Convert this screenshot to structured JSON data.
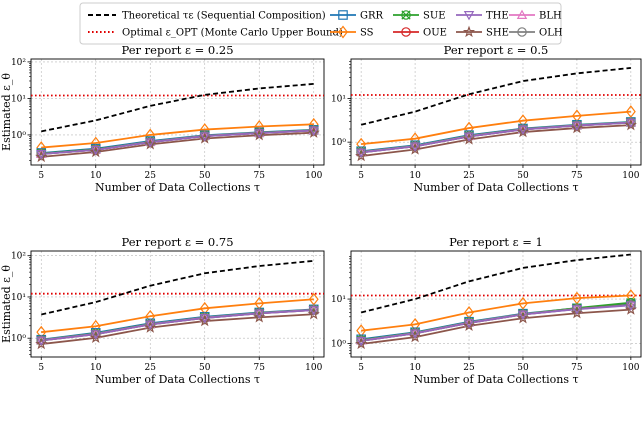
{
  "chart_data": {
    "type": "line",
    "yscale": "log",
    "x_categories": [
      "5",
      "10",
      "25",
      "50",
      "75",
      "100"
    ],
    "x_values": [
      5,
      10,
      25,
      50,
      75,
      100
    ],
    "legend": {
      "placement": "top-center",
      "reference_entries": [
        {
          "key": "theoretical",
          "label": "Theoretical τε (Sequential Composition)",
          "color": "#000000",
          "style": "dashed"
        },
        {
          "key": "optimal",
          "label": "Optimal ε_OPT (Monte Carlo Upper Bound)",
          "color": "#e00000",
          "style": "dotted"
        }
      ],
      "protocols": [
        {
          "name": "GRR",
          "color": "#1f77b4",
          "marker": "square"
        },
        {
          "name": "SS",
          "color": "#ff7f0e",
          "marker": "diamond"
        },
        {
          "name": "SUE",
          "color": "#2ca02c",
          "marker": "x"
        },
        {
          "name": "OUE",
          "color": "#d62728",
          "marker": "circle"
        },
        {
          "name": "THE",
          "color": "#9467bd",
          "marker": "triangle-down"
        },
        {
          "name": "SHE",
          "color": "#8c564b",
          "marker": "star"
        },
        {
          "name": "BLH",
          "color": "#e377c2",
          "marker": "triangle-up"
        },
        {
          "name": "OLH",
          "color": "#7f7f7f",
          "marker": "circle"
        }
      ]
    },
    "panels": [
      {
        "title": "Per report ε = 0.25",
        "epsilon": 0.25,
        "xlabel": "Number of Data Collections τ",
        "ylabel": "Estimated ε_θ",
        "ylim": [
          0.15,
          120
        ],
        "yticks": [
          {
            "v": 1,
            "label": "10⁰"
          },
          {
            "v": 10,
            "label": "10¹"
          },
          {
            "v": 100,
            "label": "10²"
          }
        ],
        "theoretical": [
          1.25,
          2.5,
          6.25,
          12.5,
          18.75,
          25
        ],
        "optimal": 12,
        "series": [
          {
            "name": "GRR",
            "values": [
              0.32,
              0.42,
              0.68,
              0.98,
              1.18,
              1.38
            ]
          },
          {
            "name": "SS",
            "values": [
              0.45,
              0.6,
              1.0,
              1.4,
              1.7,
              1.95
            ]
          },
          {
            "name": "SUE",
            "values": [
              0.31,
              0.4,
              0.65,
              0.95,
              1.15,
              1.35
            ]
          },
          {
            "name": "OUE",
            "values": [
              0.3,
              0.39,
              0.63,
              0.93,
              1.12,
              1.32
            ]
          },
          {
            "name": "THE",
            "values": [
              0.3,
              0.39,
              0.63,
              0.92,
              1.12,
              1.32
            ]
          },
          {
            "name": "SHE",
            "values": [
              0.25,
              0.34,
              0.55,
              0.8,
              0.98,
              1.15
            ]
          },
          {
            "name": "BLH",
            "values": [
              0.3,
              0.39,
              0.64,
              0.94,
              1.13,
              1.33
            ]
          },
          {
            "name": "OLH",
            "values": [
              0.3,
              0.39,
              0.63,
              0.93,
              1.12,
              1.32
            ]
          }
        ]
      },
      {
        "title": "Per report ε = 0.5",
        "epsilon": 0.5,
        "xlabel": "Number of Data Collections τ",
        "ylabel": "",
        "ylim": [
          0.3,
          80
        ],
        "yticks": [
          {
            "v": 1,
            "label": "10⁰"
          },
          {
            "v": 10,
            "label": "10¹"
          }
        ],
        "theoretical": [
          2.5,
          5,
          12.5,
          25,
          37.5,
          50
        ],
        "optimal": 12,
        "series": [
          {
            "name": "GRR",
            "values": [
              0.62,
              0.85,
              1.45,
              2.05,
              2.5,
              2.9
            ]
          },
          {
            "name": "SS",
            "values": [
              0.9,
              1.2,
              2.1,
              3.1,
              4.0,
              5.0
            ]
          },
          {
            "name": "SUE",
            "values": [
              0.6,
              0.82,
              1.4,
              2.0,
              2.45,
              2.85
            ]
          },
          {
            "name": "OUE",
            "values": [
              0.58,
              0.8,
              1.35,
              1.95,
              2.4,
              2.8
            ]
          },
          {
            "name": "THE",
            "values": [
              0.58,
              0.8,
              1.35,
              1.95,
              2.4,
              2.8
            ]
          },
          {
            "name": "SHE",
            "values": [
              0.48,
              0.68,
              1.15,
              1.7,
              2.1,
              2.45
            ]
          },
          {
            "name": "BLH",
            "values": [
              0.59,
              0.81,
              1.37,
              1.97,
              2.42,
              2.82
            ]
          },
          {
            "name": "OLH",
            "values": [
              0.58,
              0.8,
              1.35,
              1.95,
              2.4,
              2.8
            ]
          }
        ]
      },
      {
        "title": "Per report ε = 0.75",
        "epsilon": 0.75,
        "xlabel": "Number of Data Collections τ",
        "ylabel": "Estimated ε_θ",
        "ylim": [
          0.35,
          130
        ],
        "yticks": [
          {
            "v": 1,
            "label": "10⁰"
          },
          {
            "v": 10,
            "label": "10¹"
          },
          {
            "v": 100,
            "label": "10²"
          }
        ],
        "theoretical": [
          3.75,
          7.5,
          18.75,
          37.5,
          56.25,
          75
        ],
        "optimal": 12,
        "series": [
          {
            "name": "GRR",
            "values": [
              0.92,
              1.35,
              2.3,
              3.3,
              4.2,
              5.0
            ]
          },
          {
            "name": "SS",
            "values": [
              1.4,
              1.95,
              3.4,
              5.3,
              7.0,
              8.8
            ]
          },
          {
            "name": "SUE",
            "values": [
              0.9,
              1.3,
              2.2,
              3.2,
              4.1,
              4.9
            ]
          },
          {
            "name": "OUE",
            "values": [
              0.88,
              1.25,
              2.15,
              3.1,
              4.0,
              4.8
            ]
          },
          {
            "name": "THE",
            "values": [
              0.88,
              1.25,
              2.15,
              3.1,
              4.0,
              4.8
            ]
          },
          {
            "name": "SHE",
            "values": [
              0.72,
              1.02,
              1.8,
              2.6,
              3.2,
              3.8
            ]
          },
          {
            "name": "BLH",
            "values": [
              0.89,
              1.27,
              2.18,
              3.15,
              4.05,
              4.85
            ]
          },
          {
            "name": "OLH",
            "values": [
              0.88,
              1.25,
              2.15,
              3.1,
              4.0,
              4.8
            ]
          }
        ]
      },
      {
        "title": "Per report ε = 1",
        "epsilon": 1,
        "xlabel": "Number of Data Collections τ",
        "ylabel": "",
        "ylim": [
          0.5,
          120
        ],
        "yticks": [
          {
            "v": 1,
            "label": "10⁰"
          },
          {
            "v": 10,
            "label": "10¹"
          }
        ],
        "theoretical": [
          5,
          10,
          25,
          50,
          75,
          100
        ],
        "optimal": 12,
        "series": [
          {
            "name": "GRR",
            "values": [
              1.25,
              1.8,
              3.1,
              4.7,
              6.2,
              7.6
            ]
          },
          {
            "name": "SS",
            "values": [
              1.95,
              2.7,
              5.0,
              8.0,
              10.5,
              12.0
            ]
          },
          {
            "name": "SUE",
            "values": [
              1.2,
              1.75,
              3.0,
              4.6,
              6.3,
              8.3
            ]
          },
          {
            "name": "OUE",
            "values": [
              1.15,
              1.7,
              2.9,
              4.5,
              6.0,
              7.4
            ]
          },
          {
            "name": "THE",
            "values": [
              1.15,
              1.7,
              2.9,
              4.5,
              5.9,
              7.2
            ]
          },
          {
            "name": "SHE",
            "values": [
              0.98,
              1.4,
              2.5,
              3.7,
              4.8,
              5.8
            ]
          },
          {
            "name": "BLH",
            "values": [
              1.17,
              1.72,
              2.95,
              4.55,
              6.0,
              7.3
            ]
          },
          {
            "name": "OLH",
            "values": [
              1.15,
              1.7,
              2.9,
              4.5,
              6.0,
              7.4
            ]
          }
        ]
      }
    ]
  }
}
